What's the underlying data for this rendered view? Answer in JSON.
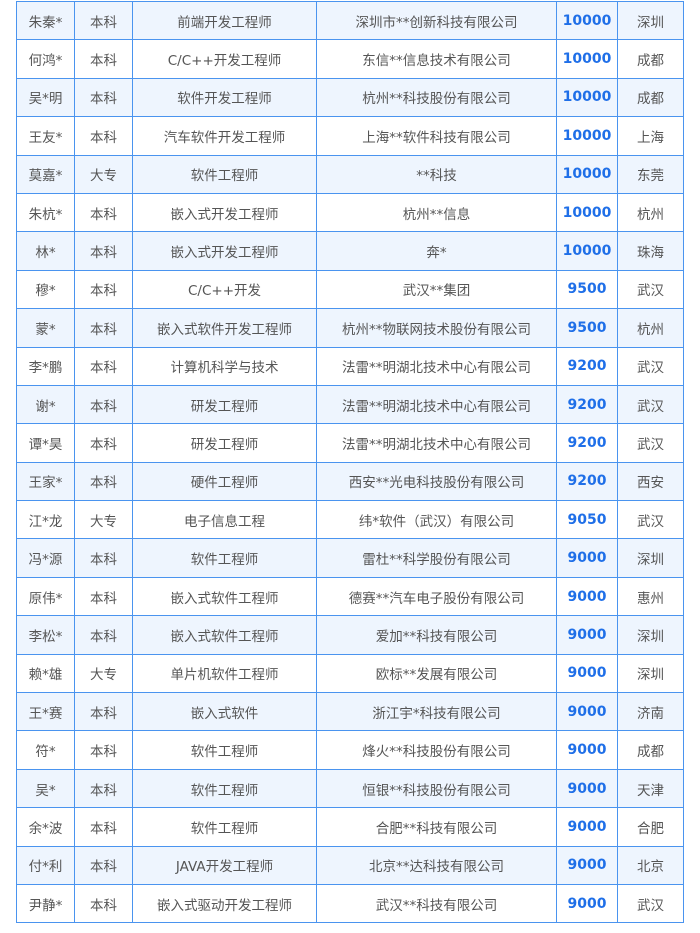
{
  "colors": {
    "border": "#4a94ef",
    "stripe": "#eef5fe",
    "salary": "#1f6fe8",
    "text": "#555555"
  },
  "rows": [
    [
      "朱秦*",
      "本科",
      "前端开发工程师",
      "深圳市**创新科技有限公司",
      "10000",
      "深圳"
    ],
    [
      "何鸿*",
      "本科",
      "C/C++开发工程师",
      "东信**信息技术有限公司",
      "10000",
      "成都"
    ],
    [
      "吴*明",
      "本科",
      "软件开发工程师",
      "杭州**科技股份有限公司",
      "10000",
      "成都"
    ],
    [
      "王友*",
      "本科",
      "汽车软件开发工程师",
      "上海**软件科技有限公司",
      "10000",
      "上海"
    ],
    [
      "莫嘉*",
      "大专",
      "软件工程师",
      "**科技",
      "10000",
      "东莞"
    ],
    [
      "朱杭*",
      "本科",
      "嵌入式开发工程师",
      "杭州**信息",
      "10000",
      "杭州"
    ],
    [
      "林*",
      "本科",
      "嵌入式开发工程师",
      "奔*",
      "10000",
      "珠海"
    ],
    [
      "穆*",
      "本科",
      "C/C++开发",
      "武汉**集团",
      "9500",
      "武汉"
    ],
    [
      "蒙*",
      "本科",
      "嵌入式软件开发工程师",
      "杭州**物联网技术股份有限公司",
      "9500",
      "杭州"
    ],
    [
      "李*鹏",
      "本科",
      "计算机科学与技术",
      "法雷**明湖北技术中心有限公司",
      "9200",
      "武汉"
    ],
    [
      "谢*",
      "本科",
      "研发工程师",
      "法雷**明湖北技术中心有限公司",
      "9200",
      "武汉"
    ],
    [
      "谭*昊",
      "本科",
      "研发工程师",
      "法雷**明湖北技术中心有限公司",
      "9200",
      "武汉"
    ],
    [
      "王家*",
      "本科",
      "硬件工程师",
      "西安**光电科技股份有限公司",
      "9200",
      "西安"
    ],
    [
      "江*龙",
      "大专",
      "电子信息工程",
      "纬*软件（武汉）有限公司",
      "9050",
      "武汉"
    ],
    [
      "冯*源",
      "本科",
      "软件工程师",
      "雷杜**科学股份有限公司",
      "9000",
      "深圳"
    ],
    [
      "原伟*",
      "本科",
      "嵌入式软件工程师",
      "德赛**汽车电子股份有限公司",
      "9000",
      "惠州"
    ],
    [
      "李松*",
      "本科",
      "嵌入式软件工程师",
      "爱加**科技有限公司",
      "9000",
      "深圳"
    ],
    [
      "赖*雄",
      "大专",
      "单片机软件工程师",
      "欧标**发展有限公司",
      "9000",
      "深圳"
    ],
    [
      "王*赛",
      "本科",
      "嵌入式软件",
      "浙江宇*科技有限公司",
      "9000",
      "济南"
    ],
    [
      "符*",
      "本科",
      "软件工程师",
      "烽火**科技股份有限公司",
      "9000",
      "成都"
    ],
    [
      "吴*",
      "本科",
      "软件工程师",
      "恒银**科技股份有限公司",
      "9000",
      "天津"
    ],
    [
      "余*波",
      "本科",
      "软件工程师",
      "合肥**科技有限公司",
      "9000",
      "合肥"
    ],
    [
      "付*利",
      "本科",
      "JAVA开发工程师",
      "北京**达科技有限公司",
      "9000",
      "北京"
    ],
    [
      "尹静*",
      "本科",
      "嵌入式驱动开发工程师",
      "武汉**科技有限公司",
      "9000",
      "武汉"
    ]
  ]
}
